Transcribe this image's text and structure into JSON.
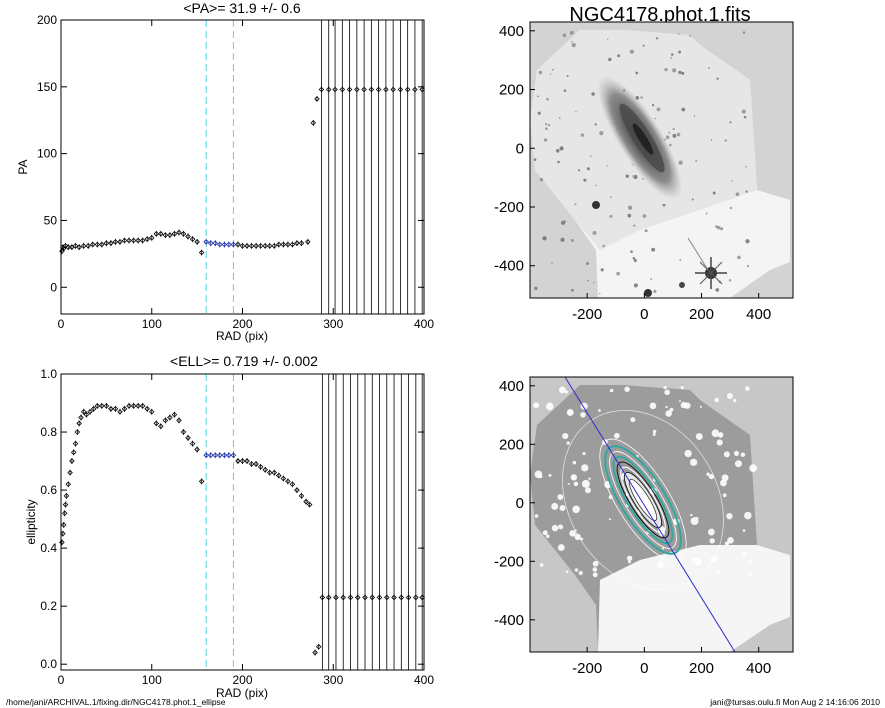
{
  "footer": {
    "left_path": "/home/jani/ARCHIVAL.1/fixing.dir/NGC4178.phot.1_ellipse",
    "right_stamp": "jani@tursas.oulu.fi  Mon Aug  2 14:16:06 2010"
  },
  "image_title": "NGC4178.phot.1.fits",
  "colors": {
    "points": "#000000",
    "fit_points": "#1a2aa8",
    "fit_bounds": "#4fd6e0",
    "major_axis_line": "#2b2bd0",
    "isophotes": "#ffffff",
    "isophote_teal": "#30a8a0"
  },
  "chart_data": [
    {
      "type": "scatter",
      "title": "<PA>=  31.9 +/-   0.6",
      "xlabel": "RAD (pix)",
      "ylabel": "PA",
      "xlim": [
        0,
        400
      ],
      "ylim": [
        -20,
        200
      ],
      "xticks": [
        0,
        100,
        200,
        300,
        400
      ],
      "yticks": [
        0,
        50,
        100,
        150,
        200
      ],
      "fit_bounds_x": [
        160,
        190
      ],
      "series": [
        {
          "values": [
            [
              1,
              27
            ],
            [
              2,
              30
            ],
            [
              3,
              29
            ],
            [
              5,
              31
            ],
            [
              8,
              30
            ],
            [
              12,
              30
            ],
            [
              16,
              31
            ],
            [
              20,
              30
            ],
            [
              25,
              31
            ],
            [
              30,
              31
            ],
            [
              35,
              32
            ],
            [
              40,
              32
            ],
            [
              45,
              32
            ],
            [
              50,
              33
            ],
            [
              55,
              33
            ],
            [
              60,
              34
            ],
            [
              65,
              34
            ],
            [
              70,
              35
            ],
            [
              75,
              35
            ],
            [
              80,
              35
            ],
            [
              85,
              35
            ],
            [
              90,
              35
            ],
            [
              95,
              36
            ],
            [
              100,
              37
            ],
            [
              105,
              40
            ],
            [
              110,
              40
            ],
            [
              115,
              39
            ],
            [
              120,
              39
            ],
            [
              125,
              40
            ],
            [
              130,
              41
            ],
            [
              135,
              40
            ],
            [
              140,
              38
            ],
            [
              145,
              36
            ],
            [
              150,
              34
            ],
            [
              155,
              26
            ],
            [
              160,
              34
            ],
            [
              165,
              33
            ],
            [
              170,
              33
            ],
            [
              175,
              32
            ],
            [
              180,
              32
            ],
            [
              185,
              32
            ],
            [
              190,
              32
            ],
            [
              195,
              32
            ],
            [
              200,
              31
            ],
            [
              205,
              31
            ],
            [
              210,
              31
            ],
            [
              215,
              31
            ],
            [
              220,
              31
            ],
            [
              225,
              31
            ],
            [
              230,
              31
            ],
            [
              235,
              31
            ],
            [
              240,
              32
            ],
            [
              245,
              32
            ],
            [
              250,
              32
            ],
            [
              255,
              32
            ],
            [
              260,
              33
            ],
            [
              265,
              33
            ],
            [
              272,
              34
            ],
            [
              278,
              123
            ],
            [
              282,
              141
            ],
            [
              287,
              148
            ],
            [
              295,
              148
            ],
            [
              302,
              148
            ],
            [
              310,
              148
            ],
            [
              318,
              148
            ],
            [
              326,
              148
            ],
            [
              334,
              148
            ],
            [
              342,
              148
            ],
            [
              350,
              148
            ],
            [
              358,
              148
            ],
            [
              366,
              148
            ],
            [
              374,
              148
            ],
            [
              382,
              148
            ],
            [
              390,
              148
            ],
            [
              398,
              148
            ]
          ]
        }
      ]
    },
    {
      "type": "scatter",
      "title": "<ELL>= 0.719 +/-  0.002",
      "xlabel": "RAD (pix)",
      "ylabel": "ellipticity",
      "xlim": [
        0,
        400
      ],
      "ylim": [
        -0.02,
        1.0
      ],
      "xticks": [
        0,
        100,
        200,
        300,
        400
      ],
      "yticks": [
        0.0,
        0.2,
        0.4,
        0.6,
        0.8,
        1.0
      ],
      "fit_bounds_x": [
        160,
        190
      ],
      "series": [
        {
          "values": [
            [
              1,
              0.42
            ],
            [
              2,
              0.45
            ],
            [
              3,
              0.48
            ],
            [
              4,
              0.52
            ],
            [
              5,
              0.55
            ],
            [
              6,
              0.58
            ],
            [
              8,
              0.62
            ],
            [
              10,
              0.66
            ],
            [
              12,
              0.7
            ],
            [
              14,
              0.73
            ],
            [
              16,
              0.76
            ],
            [
              18,
              0.8
            ],
            [
              20,
              0.83
            ],
            [
              22,
              0.85
            ],
            [
              25,
              0.87
            ],
            [
              28,
              0.86
            ],
            [
              32,
              0.87
            ],
            [
              36,
              0.88
            ],
            [
              40,
              0.89
            ],
            [
              45,
              0.89
            ],
            [
              50,
              0.89
            ],
            [
              55,
              0.88
            ],
            [
              60,
              0.88
            ],
            [
              65,
              0.87
            ],
            [
              70,
              0.88
            ],
            [
              75,
              0.89
            ],
            [
              80,
              0.89
            ],
            [
              85,
              0.89
            ],
            [
              90,
              0.89
            ],
            [
              95,
              0.88
            ],
            [
              100,
              0.87
            ],
            [
              105,
              0.83
            ],
            [
              110,
              0.82
            ],
            [
              115,
              0.84
            ],
            [
              120,
              0.85
            ],
            [
              125,
              0.86
            ],
            [
              130,
              0.84
            ],
            [
              135,
              0.8
            ],
            [
              140,
              0.78
            ],
            [
              145,
              0.76
            ],
            [
              150,
              0.74
            ],
            [
              155,
              0.63
            ],
            [
              160,
              0.72
            ],
            [
              165,
              0.72
            ],
            [
              170,
              0.72
            ],
            [
              175,
              0.72
            ],
            [
              180,
              0.72
            ],
            [
              185,
              0.72
            ],
            [
              190,
              0.72
            ],
            [
              195,
              0.7
            ],
            [
              200,
              0.7
            ],
            [
              205,
              0.7
            ],
            [
              210,
              0.69
            ],
            [
              215,
              0.69
            ],
            [
              220,
              0.68
            ],
            [
              225,
              0.67
            ],
            [
              230,
              0.66
            ],
            [
              235,
              0.66
            ],
            [
              240,
              0.65
            ],
            [
              245,
              0.64
            ],
            [
              250,
              0.63
            ],
            [
              255,
              0.62
            ],
            [
              260,
              0.6
            ],
            [
              265,
              0.58
            ],
            [
              270,
              0.56
            ],
            [
              274,
              0.55
            ],
            [
              280,
              0.04
            ],
            [
              284,
              0.06
            ],
            [
              288,
              0.23
            ],
            [
              295,
              0.23
            ],
            [
              303,
              0.23
            ],
            [
              311,
              0.23
            ],
            [
              319,
              0.23
            ],
            [
              327,
              0.23
            ],
            [
              335,
              0.23
            ],
            [
              343,
              0.23
            ],
            [
              351,
              0.23
            ],
            [
              359,
              0.23
            ],
            [
              367,
              0.23
            ],
            [
              375,
              0.23
            ],
            [
              383,
              0.23
            ],
            [
              391,
              0.23
            ],
            [
              398,
              0.23
            ]
          ]
        }
      ]
    },
    {
      "type": "heatmap",
      "title": "NGC4178.phot.1.fits",
      "xlim": [
        -400,
        520
      ],
      "ylim": [
        -510,
        430
      ],
      "xticks": [
        -200,
        0,
        200,
        400
      ],
      "yticks": [
        -400,
        -200,
        0,
        200,
        400
      ]
    },
    {
      "type": "heatmap",
      "title": "",
      "xlim": [
        -400,
        520
      ],
      "ylim": [
        -510,
        430
      ],
      "xticks": [
        -200,
        0,
        200,
        400
      ],
      "yticks": [
        -400,
        -200,
        0,
        200,
        400
      ]
    }
  ]
}
